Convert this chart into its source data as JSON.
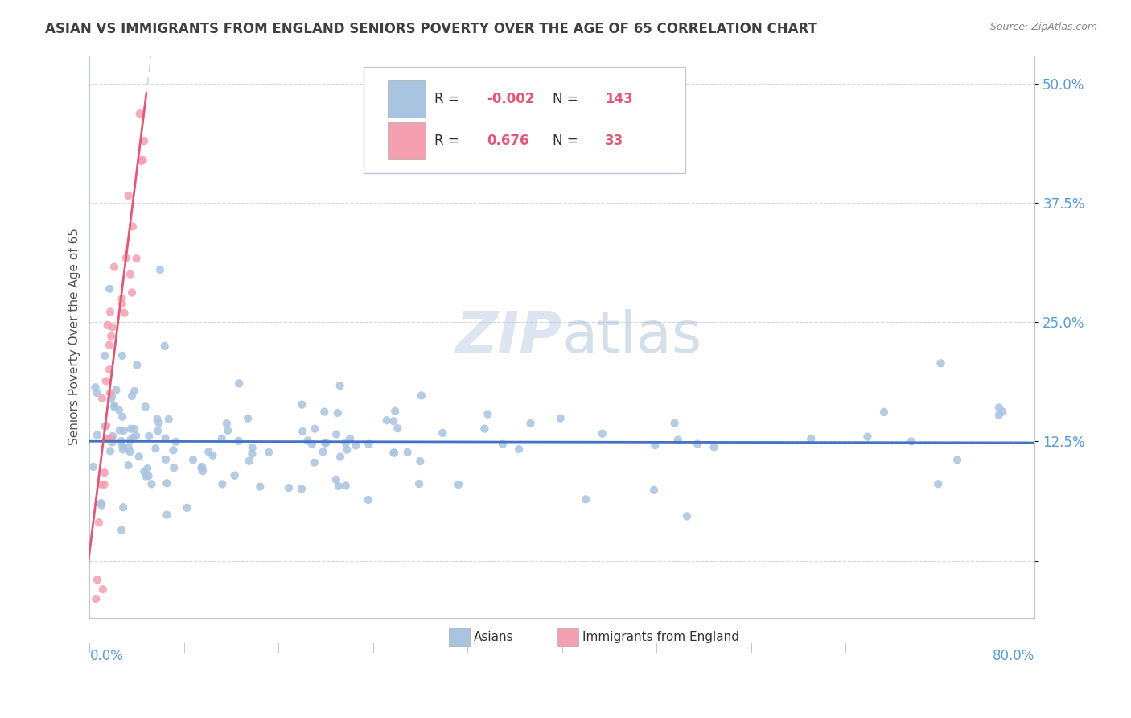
{
  "title": "ASIAN VS IMMIGRANTS FROM ENGLAND SENIORS POVERTY OVER THE AGE OF 65 CORRELATION CHART",
  "source": "Source: ZipAtlas.com",
  "ylabel": "Seniors Poverty Over the Age of 65",
  "yticks": [
    0.0,
    0.125,
    0.25,
    0.375,
    0.5
  ],
  "ytick_labels": [
    "",
    "12.5%",
    "25.0%",
    "37.5%",
    "50.0%"
  ],
  "xlim": [
    0.0,
    0.8
  ],
  "ylim": [
    -0.06,
    0.53
  ],
  "watermark_zip": "ZIP",
  "watermark_atlas": "atlas",
  "legend": {
    "asian_r": "-0.002",
    "asian_n": "143",
    "england_r": "0.676",
    "england_n": "33"
  },
  "asian_color": "#a8c4e0",
  "england_color": "#f4a0b0",
  "asian_line_color": "#4472c4",
  "england_line_color": "#e05878",
  "england_line_solid_color": "#e05878",
  "england_line_dash_color": "#e8a0b0",
  "title_color": "#404040",
  "axis_label_color": "#5b9bd5",
  "r_value_color": "#e05878",
  "r_label_color": "#404040",
  "grid_color": "#d0d8e8",
  "spine_color": "#c0c8d8"
}
